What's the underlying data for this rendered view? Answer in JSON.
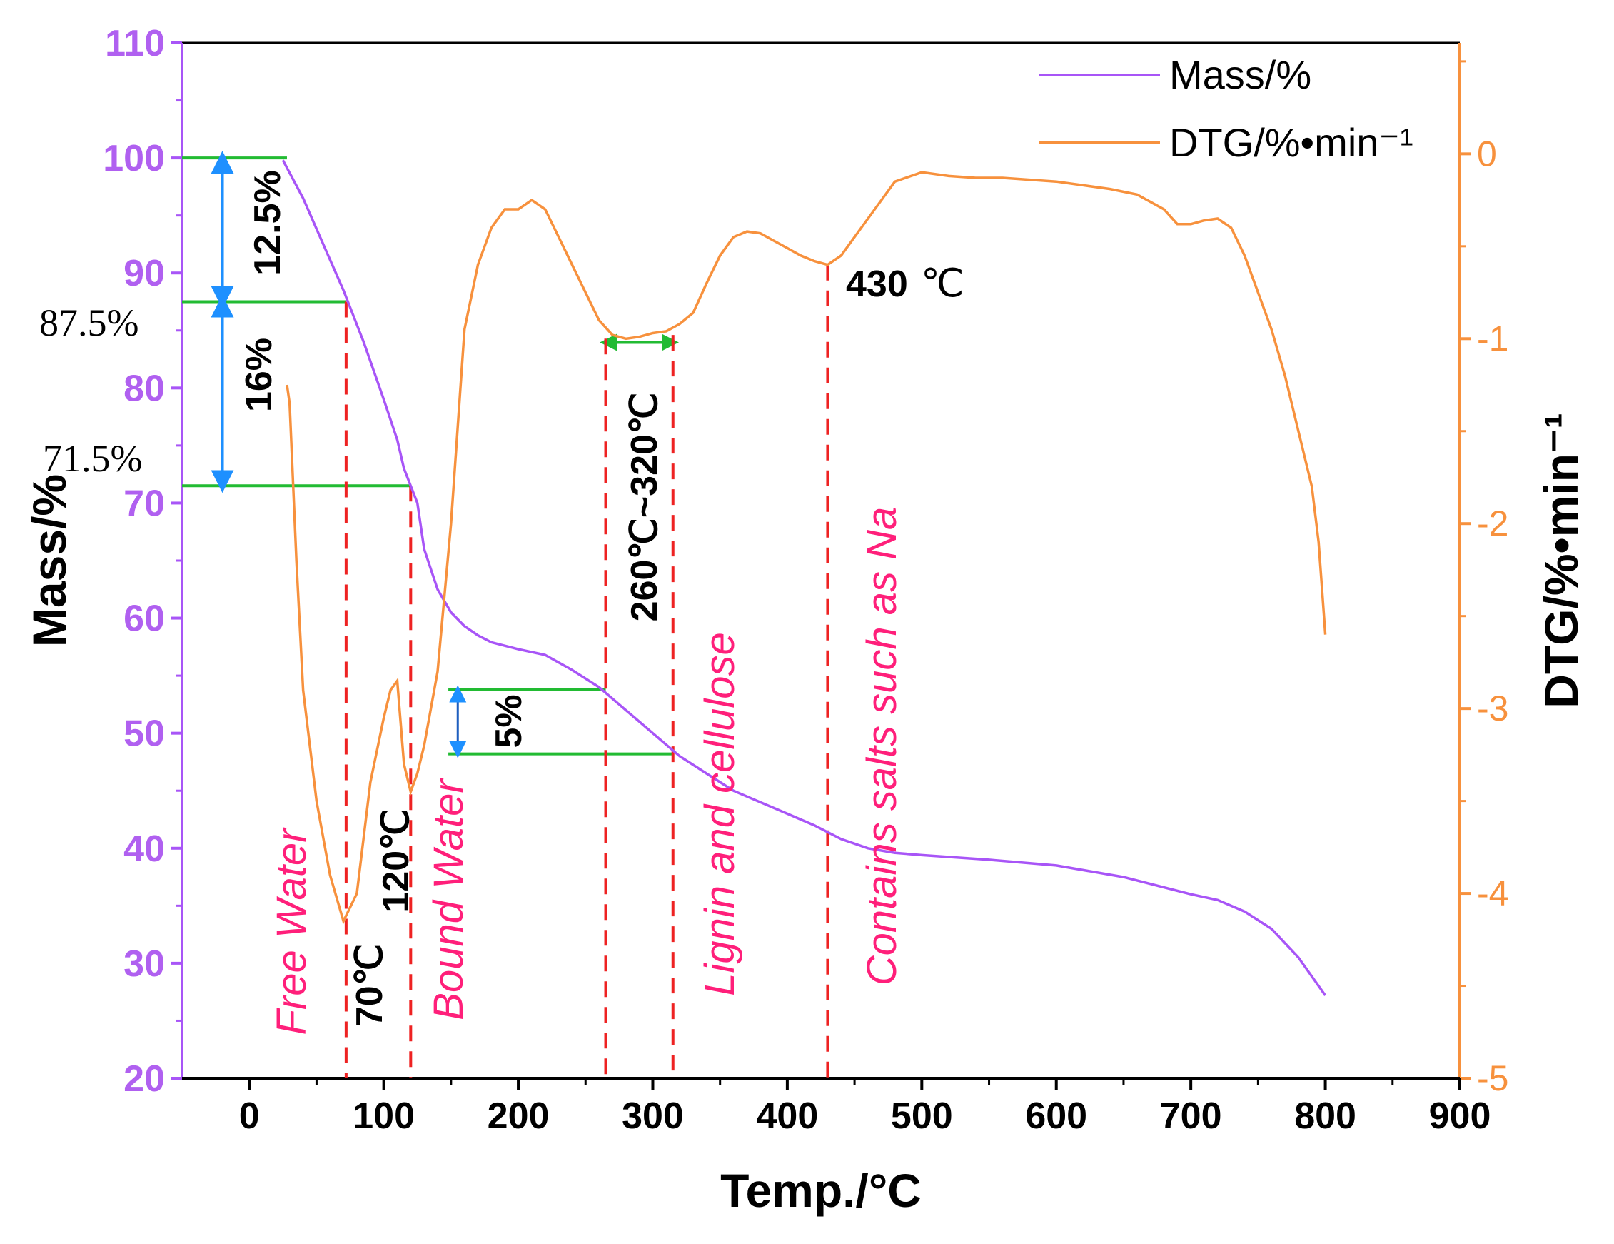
{
  "chart_data": {
    "type": "line",
    "xlabel": "Temp./°C",
    "ylabel": "Mass/%",
    "y2label": "DTG/%•min⁻¹",
    "xlim": [
      -50,
      900
    ],
    "ylim": [
      20,
      110
    ],
    "y2lim": [
      -5,
      0.6
    ],
    "x_ticks": [
      0,
      100,
      200,
      300,
      400,
      500,
      600,
      700,
      800,
      900
    ],
    "y_ticks": [
      20,
      30,
      40,
      50,
      60,
      70,
      80,
      90,
      100,
      110
    ],
    "y2_ticks": [
      -5,
      -4,
      -3,
      -2,
      -1,
      0
    ],
    "colors": {
      "mass": "#a855f7",
      "dtg": "#f7913d",
      "green": "#22bb33",
      "blue": "#1e90ff",
      "red": "#ee2222",
      "pink": "#ff1f7a"
    },
    "legend": {
      "position": "top-right",
      "entries": [
        "Mass/%",
        "DTG/%•min⁻¹"
      ]
    },
    "series": [
      {
        "name": "Mass/%",
        "axis": "left",
        "x": [
          25,
          40,
          55,
          70,
          85,
          100,
          110,
          115,
          120,
          125,
          130,
          140,
          150,
          160,
          170,
          180,
          200,
          220,
          240,
          260,
          280,
          300,
          320,
          340,
          360,
          380,
          400,
          420,
          440,
          460,
          480,
          500,
          550,
          600,
          650,
          700,
          720,
          740,
          760,
          780,
          800
        ],
        "values": [
          99.8,
          96.5,
          92.5,
          88.5,
          84,
          79,
          75.5,
          73,
          71.5,
          70,
          66,
          62.5,
          60.5,
          59.3,
          58.5,
          57.9,
          57.3,
          56.8,
          55.5,
          54,
          52,
          50,
          48,
          46.5,
          45,
          44,
          43,
          42,
          40.8,
          40,
          39.6,
          39.4,
          39,
          38.5,
          37.5,
          36,
          35.5,
          34.5,
          33,
          30.5,
          27.2
        ]
      },
      {
        "name": "DTG/%•min⁻¹",
        "axis": "right",
        "x": [
          28,
          30,
          35,
          40,
          50,
          60,
          70,
          80,
          90,
          100,
          105,
          110,
          115,
          120,
          125,
          130,
          140,
          150,
          160,
          170,
          180,
          190,
          200,
          210,
          220,
          230,
          240,
          250,
          260,
          270,
          280,
          290,
          300,
          310,
          320,
          330,
          340,
          350,
          360,
          370,
          380,
          390,
          400,
          410,
          420,
          430,
          440,
          450,
          460,
          470,
          480,
          500,
          520,
          540,
          560,
          580,
          600,
          620,
          640,
          660,
          680,
          690,
          700,
          710,
          720,
          730,
          740,
          750,
          760,
          770,
          780,
          790,
          795,
          800
        ],
        "values": [
          -1.25,
          -1.35,
          -2.2,
          -2.9,
          -3.5,
          -3.9,
          -4.15,
          -4.0,
          -3.4,
          -3.05,
          -2.9,
          -2.85,
          -3.3,
          -3.45,
          -3.35,
          -3.2,
          -2.8,
          -2.0,
          -0.95,
          -0.6,
          -0.4,
          -0.3,
          -0.3,
          -0.25,
          -0.3,
          -0.45,
          -0.6,
          -0.75,
          -0.9,
          -0.98,
          -1.0,
          -0.99,
          -0.97,
          -0.96,
          -0.92,
          -0.86,
          -0.7,
          -0.55,
          -0.45,
          -0.42,
          -0.43,
          -0.47,
          -0.51,
          -0.55,
          -0.58,
          -0.6,
          -0.55,
          -0.45,
          -0.35,
          -0.25,
          -0.15,
          -0.1,
          -0.12,
          -0.13,
          -0.13,
          -0.14,
          -0.15,
          -0.17,
          -0.19,
          -0.22,
          -0.3,
          -0.38,
          -0.38,
          -0.36,
          -0.35,
          -0.4,
          -0.55,
          -0.75,
          -0.95,
          -1.2,
          -1.5,
          -1.8,
          -2.1,
          -2.6
        ]
      }
    ],
    "annotations": {
      "pct_87": "87.5%",
      "pct_71": "71.5%",
      "step_12": "12.5%",
      "step_16": "16%",
      "step_5": "5%",
      "t_70": "70℃",
      "t_120": "120℃",
      "range_260_320": "260℃~320℃",
      "t_430": "430",
      "t_430_unit": "℃",
      "free_water": "Free Water",
      "bound_water": "Bound Water",
      "lignin": "Lignin and cellulose",
      "salts": "Contains salts such as Na"
    }
  }
}
